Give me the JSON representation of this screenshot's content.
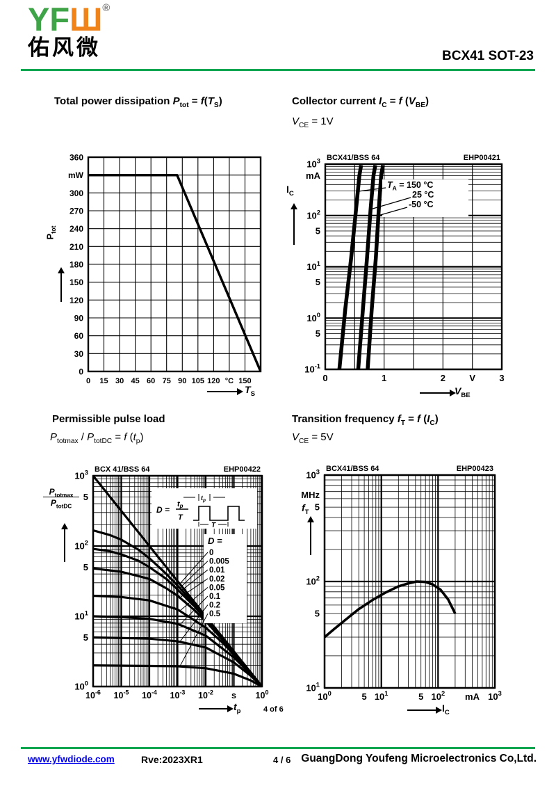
{
  "header": {
    "logo_latin_green": "YF",
    "logo_latin_orange": "Ш",
    "registered_mark": "®",
    "logo_chinese": "佑风微",
    "part_number": "BCX41 SOT-23"
  },
  "footer": {
    "website": "www.yfwdiode.com",
    "revision": "Rve:2023XR1",
    "page_indicator": "4 / 6",
    "company": "GuangDong Youfeng Microelectronics Co,Ltd.",
    "page_marker": "4 of 6"
  },
  "colors": {
    "accent_green": "#00A550",
    "logo_green": "#3FA348",
    "logo_orange": "#F08319",
    "link_blue": "#0000EE"
  },
  "chart_data": [
    {
      "type": "line",
      "title_html": "Total power dissipation <i>P</i><sub>tot</sub> = <i>f</i>(<i>T</i><sub>S</sub>)",
      "xscale": "linear",
      "yscale": "linear",
      "xlim": [
        0,
        165
      ],
      "ylim": [
        0,
        360
      ],
      "xstep": 15,
      "ystep": 30,
      "xlabel_html": "<i>T</i><sub>S</sub>",
      "ylabel_html": "P<sub>tot</sub>",
      "x_ticks": [
        {
          "v": 0,
          "l": "0"
        },
        {
          "v": 15,
          "l": "15"
        },
        {
          "v": 30,
          "l": "30"
        },
        {
          "v": 45,
          "l": "45"
        },
        {
          "v": 60,
          "l": "60"
        },
        {
          "v": 75,
          "l": "75"
        },
        {
          "v": 90,
          "l": "90"
        },
        {
          "v": 105,
          "l": "105"
        },
        {
          "v": 120,
          "l": "120"
        },
        {
          "v": 135,
          "l": "°C"
        },
        {
          "v": 150,
          "l": "150"
        }
      ],
      "y_ticks": [
        {
          "v": 360,
          "l": "360"
        },
        {
          "v": 330,
          "l": "mW"
        },
        {
          "v": 300,
          "l": "300"
        },
        {
          "v": 270,
          "l": "270"
        },
        {
          "v": 240,
          "l": "240"
        },
        {
          "v": 210,
          "l": "210"
        },
        {
          "v": 180,
          "l": "180"
        },
        {
          "v": 150,
          "l": "150"
        },
        {
          "v": 120,
          "l": "120"
        },
        {
          "v": 90,
          "l": "90"
        },
        {
          "v": 60,
          "l": "60"
        },
        {
          "v": 30,
          "l": "30"
        },
        {
          "v": 0,
          "l": "0"
        }
      ],
      "series": [
        {
          "name": "Ptot",
          "points": [
            [
              0,
              330
            ],
            [
              85,
              330
            ],
            [
              165,
              0
            ]
          ]
        }
      ]
    },
    {
      "type": "line",
      "title_html": "Collector current <i>I</i><sub>C</sub> = <i>f</i> (<i>V</i><sub>BE</sub>)",
      "subtitle_html": "<i>V</i><sub>CE</sub> = 1V",
      "panel_label": "BCX41/BSS 64",
      "panel_code": "EHP00421",
      "xscale": "linear",
      "yscale": "log",
      "xlim": [
        0,
        3
      ],
      "ylim": [
        0.1,
        1000
      ],
      "xstep": 0.5,
      "xlabel_html": "<i>V</i><sub>BE</sub>",
      "ylabel_html": "I<sub>C</sub>",
      "x_ticks": [
        {
          "v": 0,
          "l": "0"
        },
        {
          "v": 1,
          "l": "1"
        },
        {
          "v": 2,
          "l": "2"
        },
        {
          "v": 2.5,
          "l": "V"
        },
        {
          "v": 3,
          "l": "3"
        }
      ],
      "y_ticks": [
        {
          "v": 1000,
          "l": "10^3"
        },
        {
          "v": 600,
          "l": "mA"
        },
        {
          "v": 100,
          "l": "10^2"
        },
        {
          "v": 50,
          "l": "5"
        },
        {
          "v": 10,
          "l": "10^1"
        },
        {
          "v": 5,
          "l": "5"
        },
        {
          "v": 1,
          "l": "10^0"
        },
        {
          "v": 0.5,
          "l": "5"
        },
        {
          "v": 0.1,
          "l": "10^-1"
        }
      ],
      "series": [
        {
          "name": "TA = 150 °C",
          "points": [
            [
              0.24,
              0.1
            ],
            [
              0.34,
              1.5
            ],
            [
              0.44,
              15
            ],
            [
              0.52,
              120
            ],
            [
              0.58,
              600
            ],
            [
              0.61,
              950
            ]
          ]
        },
        {
          "name": "25 °C",
          "points": [
            [
              0.56,
              0.1
            ],
            [
              0.64,
              1.5
            ],
            [
              0.71,
              15
            ],
            [
              0.77,
              130
            ],
            [
              0.82,
              600
            ],
            [
              0.85,
              950
            ]
          ]
        },
        {
          "name": "-50 °C",
          "points": [
            [
              0.72,
              0.1
            ],
            [
              0.79,
              1.5
            ],
            [
              0.86,
              15
            ],
            [
              0.91,
              130
            ],
            [
              0.95,
              600
            ],
            [
              0.98,
              950
            ]
          ]
        }
      ],
      "annotations": [
        {
          "text_html": "<i>T</i><sub>A</sub> = 150 °C"
        },
        {
          "text_html": "25 °C"
        },
        {
          "text_html": "-50 °C"
        }
      ]
    },
    {
      "type": "line",
      "title_html": "Permissible pulse load",
      "subtitle_html": "<i>P</i><sub>totmax</sub> / <i>P</i><sub>totDC</sub> = <i>f</i> (<i>t</i><sub>p</sub>)",
      "panel_label": "BCX 41/BSS 64",
      "panel_code": "EHP00422",
      "xscale": "log",
      "yscale": "log",
      "xlim": [
        1e-06,
        1
      ],
      "ylim": [
        1,
        1000
      ],
      "xlabel_html": "<i>t</i><sub>p</sub>",
      "ylabel_top_html": "<i>P</i><sub>totmax</sub>",
      "ylabel_bot_html": "<i>P</i><sub>totDC</sub>",
      "x_ticks": [
        {
          "v": 1e-06,
          "l": "10^-6"
        },
        {
          "v": 1e-05,
          "l": "10^-5"
        },
        {
          "v": 0.0001,
          "l": "10^-4"
        },
        {
          "v": 0.001,
          "l": "10^-3"
        },
        {
          "v": 0.01,
          "l": "10^-2"
        },
        {
          "v": 0.1,
          "l": "s"
        },
        {
          "v": 1,
          "l": "10^0"
        }
      ],
      "y_ticks": [
        {
          "v": 1000,
          "l": "10^3"
        },
        {
          "v": 500,
          "l": "5"
        },
        {
          "v": 100,
          "l": "10^2"
        },
        {
          "v": 50,
          "l": "5"
        },
        {
          "v": 10,
          "l": "10^1"
        },
        {
          "v": 5,
          "l": "5"
        },
        {
          "v": 1,
          "l": "10^0"
        }
      ],
      "legend_title": "D =",
      "inset": {
        "d_label": "D =",
        "frac_top_main": "t",
        "frac_top_sub": "p",
        "frac_bot": "T",
        "wave_pulse_main": "t",
        "wave_pulse_sub": "p",
        "wave_period": "T"
      },
      "series": [
        {
          "name": "0",
          "points": [
            [
              1e-06,
              1000
            ],
            [
              2e-06,
              707
            ],
            [
              4e-06,
              500
            ],
            [
              1e-05,
              316
            ],
            [
              2e-05,
              224
            ],
            [
              4e-05,
              158
            ],
            [
              0.0001,
              100
            ],
            [
              0.0002,
              70.7
            ],
            [
              0.0004,
              50
            ],
            [
              0.001,
              31.6
            ],
            [
              0.002,
              22.4
            ],
            [
              0.004,
              15.8
            ],
            [
              0.01,
              10
            ],
            [
              0.02,
              7.07
            ],
            [
              0.04,
              5
            ],
            [
              0.1,
              3.16
            ],
            [
              0.2,
              2.24
            ],
            [
              0.4,
              1.58
            ],
            [
              0.7,
              1.2
            ],
            [
              1,
              1
            ]
          ]
        },
        {
          "name": "0.005",
          "points": [
            [
              1e-06,
              167
            ],
            [
              4e-06,
              143
            ],
            [
              1e-05,
              123
            ],
            [
              4e-05,
              89
            ],
            [
              0.0001,
              67
            ],
            [
              0.0004,
              40
            ],
            [
              0.001,
              27.4
            ],
            [
              0.004,
              14.7
            ],
            [
              0.01,
              9.6
            ],
            [
              0.04,
              4.9
            ],
            [
              0.1,
              3.1
            ],
            [
              0.4,
              1.58
            ],
            [
              1,
              1
            ]
          ]
        },
        {
          "name": "0.01",
          "points": [
            [
              1e-06,
              91
            ],
            [
              4e-06,
              84
            ],
            [
              1e-05,
              76
            ],
            [
              4e-05,
              62
            ],
            [
              0.0001,
              50
            ],
            [
              0.0004,
              34
            ],
            [
              0.001,
              24
            ],
            [
              0.004,
              13.8
            ],
            [
              0.01,
              9.2
            ],
            [
              0.04,
              4.8
            ],
            [
              0.1,
              3.1
            ],
            [
              0.4,
              1.57
            ],
            [
              1,
              1
            ]
          ]
        },
        {
          "name": "0.02",
          "points": [
            [
              1e-06,
              48
            ],
            [
              1e-05,
              43
            ],
            [
              0.0001,
              34
            ],
            [
              0.0004,
              25
            ],
            [
              0.001,
              19.6
            ],
            [
              0.004,
              12.2
            ],
            [
              0.01,
              8.5
            ],
            [
              0.04,
              4.6
            ],
            [
              0.1,
              3.0
            ],
            [
              0.4,
              1.56
            ],
            [
              1,
              1
            ]
          ]
        },
        {
          "name": "0.05",
          "points": [
            [
              1e-06,
              19.6
            ],
            [
              1e-05,
              18.8
            ],
            [
              0.0001,
              16.8
            ],
            [
              0.001,
              12.5
            ],
            [
              0.01,
              6.9
            ],
            [
              0.04,
              4.2
            ],
            [
              0.1,
              2.85
            ],
            [
              0.4,
              1.54
            ],
            [
              1,
              1
            ]
          ]
        },
        {
          "name": "0.1",
          "points": [
            [
              1e-06,
              10
            ],
            [
              1e-05,
              9.7
            ],
            [
              0.0001,
              9.2
            ],
            [
              0.001,
              7.8
            ],
            [
              0.01,
              5.3
            ],
            [
              0.1,
              2.6
            ],
            [
              0.4,
              1.49
            ],
            [
              1,
              1
            ]
          ]
        },
        {
          "name": "0.2",
          "points": [
            [
              1e-06,
              5
            ],
            [
              0.0001,
              4.8
            ],
            [
              0.001,
              4.4
            ],
            [
              0.01,
              3.6
            ],
            [
              0.1,
              2.2
            ],
            [
              0.4,
              1.42
            ],
            [
              1,
              1
            ]
          ]
        },
        {
          "name": "0.5",
          "points": [
            [
              1e-06,
              2
            ],
            [
              0.001,
              1.94
            ],
            [
              0.01,
              1.82
            ],
            [
              0.1,
              1.52
            ],
            [
              0.4,
              1.22
            ],
            [
              1,
              1
            ]
          ]
        }
      ]
    },
    {
      "type": "line",
      "title_html": "Transition frequency <i>f</i><sub>T</sub> = <i>f</i> (<i>I</i><sub>C</sub>)",
      "subtitle_html": "<i>V</i><sub>CE</sub> = 5V",
      "panel_label": "BCX41/BSS 64",
      "panel_code": "EHP00423",
      "xscale": "log",
      "yscale": "log",
      "xlim": [
        1,
        1000
      ],
      "ylim": [
        10,
        1000
      ],
      "xlabel_html": "I<sub>C</sub>",
      "ylabel_html": "<i>f</i><sub>T</sub>",
      "x_ticks": [
        {
          "v": 1,
          "l": "10^0"
        },
        {
          "v": 5,
          "l": "5"
        },
        {
          "v": 10,
          "l": "10^1"
        },
        {
          "v": 50,
          "l": "5"
        },
        {
          "v": 100,
          "l": "10^2"
        },
        {
          "v": 400,
          "l": "mA"
        },
        {
          "v": 1000,
          "l": "10^3"
        }
      ],
      "y_ticks": [
        {
          "v": 1000,
          "l": "10^3"
        },
        {
          "v": 650,
          "l": "MHz"
        },
        {
          "v": 500,
          "l": "5"
        },
        {
          "v": 100,
          "l": "10^2"
        },
        {
          "v": 50,
          "l": "5"
        },
        {
          "v": 10,
          "l": "10^1"
        }
      ],
      "series": [
        {
          "name": "fT",
          "points": [
            [
              1,
              30
            ],
            [
              1.5,
              36
            ],
            [
              2.5,
              45
            ],
            [
              4,
              55
            ],
            [
              7,
              67
            ],
            [
              12,
              79
            ],
            [
              20,
              90
            ],
            [
              30,
              96
            ],
            [
              42,
              100
            ],
            [
              60,
              99
            ],
            [
              80,
              94
            ],
            [
              110,
              84
            ],
            [
              150,
              68
            ],
            [
              200,
              50
            ]
          ]
        }
      ]
    }
  ]
}
